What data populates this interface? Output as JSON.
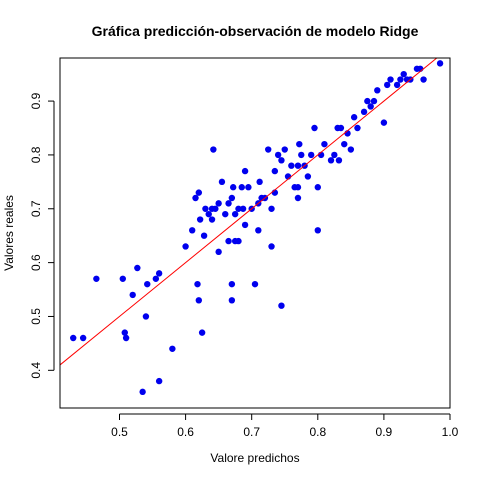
{
  "chart_data": {
    "type": "scatter",
    "title": "Gráfica predicción-observación de modelo Ridge",
    "xlabel": "Valore predichos",
    "ylabel": "Valores reales",
    "xlim": [
      0.41,
      1.0
    ],
    "ylim": [
      0.33,
      0.98
    ],
    "xticks": [
      0.5,
      0.6,
      0.7,
      0.8,
      0.9,
      1.0
    ],
    "xtick_labels": [
      "0.5",
      "0.6",
      "0.7",
      "0.8",
      "0.9",
      "1.0"
    ],
    "yticks": [
      0.4,
      0.5,
      0.6,
      0.7,
      0.8,
      0.9
    ],
    "ytick_labels": [
      "0.4",
      "0.5",
      "0.6",
      "0.7",
      "0.8",
      "0.9"
    ],
    "grid": false,
    "point_color": "#0000ee",
    "line_color": "#ff0000",
    "reference_line": {
      "intercept": 0,
      "slope": 1
    },
    "points": [
      [
        0.43,
        0.46
      ],
      [
        0.445,
        0.46
      ],
      [
        0.465,
        0.57
      ],
      [
        0.505,
        0.57
      ],
      [
        0.508,
        0.47
      ],
      [
        0.51,
        0.46
      ],
      [
        0.52,
        0.54
      ],
      [
        0.527,
        0.59
      ],
      [
        0.535,
        0.36
      ],
      [
        0.54,
        0.5
      ],
      [
        0.542,
        0.56
      ],
      [
        0.555,
        0.57
      ],
      [
        0.56,
        0.38
      ],
      [
        0.56,
        0.58
      ],
      [
        0.58,
        0.44
      ],
      [
        0.6,
        0.63
      ],
      [
        0.61,
        0.66
      ],
      [
        0.615,
        0.72
      ],
      [
        0.618,
        0.56
      ],
      [
        0.62,
        0.53
      ],
      [
        0.62,
        0.73
      ],
      [
        0.622,
        0.68
      ],
      [
        0.625,
        0.47
      ],
      [
        0.628,
        0.65
      ],
      [
        0.63,
        0.7
      ],
      [
        0.635,
        0.69
      ],
      [
        0.64,
        0.68
      ],
      [
        0.64,
        0.7
      ],
      [
        0.642,
        0.81
      ],
      [
        0.645,
        0.7
      ],
      [
        0.65,
        0.62
      ],
      [
        0.65,
        0.71
      ],
      [
        0.655,
        0.75
      ],
      [
        0.66,
        0.69
      ],
      [
        0.665,
        0.64
      ],
      [
        0.665,
        0.71
      ],
      [
        0.67,
        0.72
      ],
      [
        0.67,
        0.56
      ],
      [
        0.67,
        0.53
      ],
      [
        0.672,
        0.74
      ],
      [
        0.675,
        0.64
      ],
      [
        0.675,
        0.69
      ],
      [
        0.68,
        0.7
      ],
      [
        0.68,
        0.64
      ],
      [
        0.685,
        0.74
      ],
      [
        0.687,
        0.7
      ],
      [
        0.69,
        0.77
      ],
      [
        0.69,
        0.67
      ],
      [
        0.695,
        0.74
      ],
      [
        0.7,
        0.7
      ],
      [
        0.705,
        0.56
      ],
      [
        0.71,
        0.66
      ],
      [
        0.71,
        0.71
      ],
      [
        0.712,
        0.75
      ],
      [
        0.715,
        0.72
      ],
      [
        0.72,
        0.72
      ],
      [
        0.725,
        0.81
      ],
      [
        0.73,
        0.7
      ],
      [
        0.73,
        0.63
      ],
      [
        0.735,
        0.77
      ],
      [
        0.735,
        0.73
      ],
      [
        0.74,
        0.8
      ],
      [
        0.745,
        0.52
      ],
      [
        0.745,
        0.79
      ],
      [
        0.75,
        0.81
      ],
      [
        0.755,
        0.76
      ],
      [
        0.76,
        0.78
      ],
      [
        0.765,
        0.74
      ],
      [
        0.77,
        0.72
      ],
      [
        0.77,
        0.78
      ],
      [
        0.77,
        0.74
      ],
      [
        0.772,
        0.82
      ],
      [
        0.775,
        0.8
      ],
      [
        0.78,
        0.78
      ],
      [
        0.785,
        0.76
      ],
      [
        0.79,
        0.8
      ],
      [
        0.795,
        0.85
      ],
      [
        0.8,
        0.74
      ],
      [
        0.8,
        0.66
      ],
      [
        0.805,
        0.8
      ],
      [
        0.81,
        0.82
      ],
      [
        0.82,
        0.79
      ],
      [
        0.825,
        0.8
      ],
      [
        0.83,
        0.85
      ],
      [
        0.832,
        0.79
      ],
      [
        0.835,
        0.85
      ],
      [
        0.84,
        0.82
      ],
      [
        0.845,
        0.84
      ],
      [
        0.85,
        0.81
      ],
      [
        0.855,
        0.87
      ],
      [
        0.86,
        0.85
      ],
      [
        0.87,
        0.88
      ],
      [
        0.875,
        0.9
      ],
      [
        0.88,
        0.89
      ],
      [
        0.885,
        0.9
      ],
      [
        0.89,
        0.92
      ],
      [
        0.9,
        0.86
      ],
      [
        0.905,
        0.93
      ],
      [
        0.91,
        0.94
      ],
      [
        0.92,
        0.93
      ],
      [
        0.925,
        0.94
      ],
      [
        0.93,
        0.95
      ],
      [
        0.935,
        0.94
      ],
      [
        0.94,
        0.94
      ],
      [
        0.95,
        0.96
      ],
      [
        0.955,
        0.96
      ],
      [
        0.96,
        0.94
      ],
      [
        0.985,
        0.97
      ]
    ]
  }
}
